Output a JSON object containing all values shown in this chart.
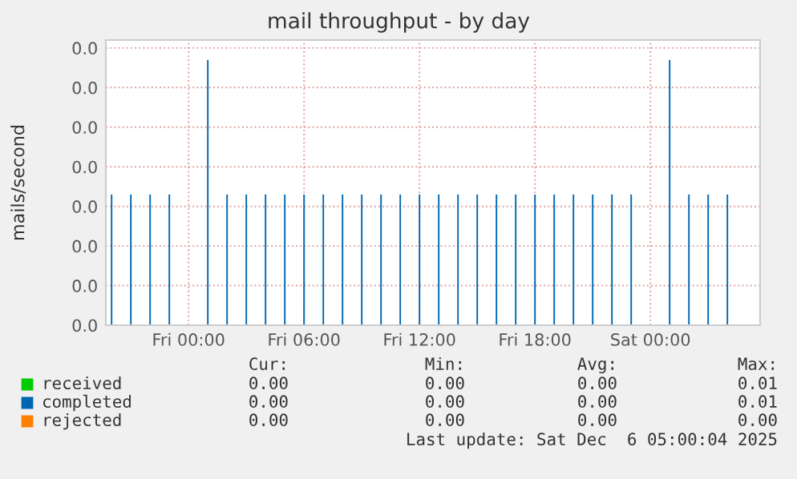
{
  "chart_data": {
    "type": "bar",
    "title": "mail throughput - by day",
    "ylabel": "mails/second",
    "x": [
      "2025-12-04T20:00",
      "2025-12-04T21:00",
      "2025-12-04T22:00",
      "2025-12-04T23:00",
      "2025-12-05T01:00",
      "2025-12-05T02:00",
      "2025-12-05T03:00",
      "2025-12-05T04:00",
      "2025-12-05T05:00",
      "2025-12-05T06:00",
      "2025-12-05T07:00",
      "2025-12-05T08:00",
      "2025-12-05T09:00",
      "2025-12-05T10:00",
      "2025-12-05T11:00",
      "2025-12-05T12:00",
      "2025-12-05T13:00",
      "2025-12-05T14:00",
      "2025-12-05T15:00",
      "2025-12-05T16:00",
      "2025-12-05T17:00",
      "2025-12-05T18:00",
      "2025-12-05T19:00",
      "2025-12-05T20:00",
      "2025-12-05T21:00",
      "2025-12-05T22:00",
      "2025-12-05T23:00",
      "2025-12-06T01:00",
      "2025-12-06T02:00",
      "2025-12-06T03:00",
      "2025-12-06T04:00"
    ],
    "series": [
      {
        "name": "received",
        "color": "#00cc00",
        "values": [
          null,
          null,
          null,
          null,
          null,
          null,
          null,
          null,
          null,
          null,
          null,
          null,
          null,
          null,
          null,
          null,
          null,
          null,
          null,
          null,
          null,
          null,
          null,
          null,
          null,
          null,
          null,
          null,
          null,
          null,
          null
        ]
      },
      {
        "name": "completed",
        "color": "#0066b3",
        "values": [
          0.0033,
          0.0033,
          0.0033,
          0.0033,
          0.0067,
          0.0033,
          0.0033,
          0.0033,
          0.0033,
          0.0033,
          0.0033,
          0.0033,
          0.0033,
          0.0033,
          0.0033,
          0.0033,
          0.0033,
          0.0033,
          0.0033,
          0.0033,
          0.0033,
          0.0033,
          0.0033,
          0.0033,
          0.0033,
          0.0033,
          0.0033,
          0.0067,
          0.0033,
          0.0033,
          0.0033
        ]
      },
      {
        "name": "rejected",
        "color": "#ff8000",
        "values": [
          null,
          null,
          null,
          null,
          null,
          null,
          null,
          null,
          null,
          null,
          null,
          null,
          null,
          null,
          null,
          null,
          null,
          null,
          null,
          null,
          null,
          null,
          null,
          null,
          null,
          null,
          null,
          null,
          null,
          null,
          null
        ]
      }
    ],
    "xlim": [
      "2025-12-04T19:42",
      "2025-12-06T05:42"
    ],
    "xticks": [
      {
        "value": "2025-12-05T00:00",
        "label": "Fri 00:00"
      },
      {
        "value": "2025-12-05T06:00",
        "label": "Fri 06:00"
      },
      {
        "value": "2025-12-05T12:00",
        "label": "Fri 12:00"
      },
      {
        "value": "2025-12-05T18:00",
        "label": "Fri 18:00"
      },
      {
        "value": "2025-12-06T00:00",
        "label": "Sat 00:00"
      }
    ],
    "ylim": [
      0,
      0.0072
    ],
    "yticks": [
      {
        "value": 0,
        "label": "0.0"
      },
      {
        "value": 0.001,
        "label": "0.0"
      },
      {
        "value": 0.002,
        "label": "0.0"
      },
      {
        "value": 0.003,
        "label": "0.0"
      },
      {
        "value": 0.004,
        "label": "0.0"
      },
      {
        "value": 0.005,
        "label": "0.0"
      },
      {
        "value": 0.006,
        "label": "0.0"
      },
      {
        "value": 0.007,
        "label": "0.0"
      }
    ],
    "grid": true,
    "legend": "bottom",
    "annotations": [
      "Cur:",
      "Min:",
      "Avg:",
      "Max:",
      "0.00",
      "0.00",
      "0.00",
      "0.01",
      "0.00",
      "0.00",
      "0.00",
      "0.01",
      "0.00",
      "0.00",
      "0.00",
      "0.00",
      "Last update: Sat Dec  6 05:00:04 2025"
    ]
  }
}
